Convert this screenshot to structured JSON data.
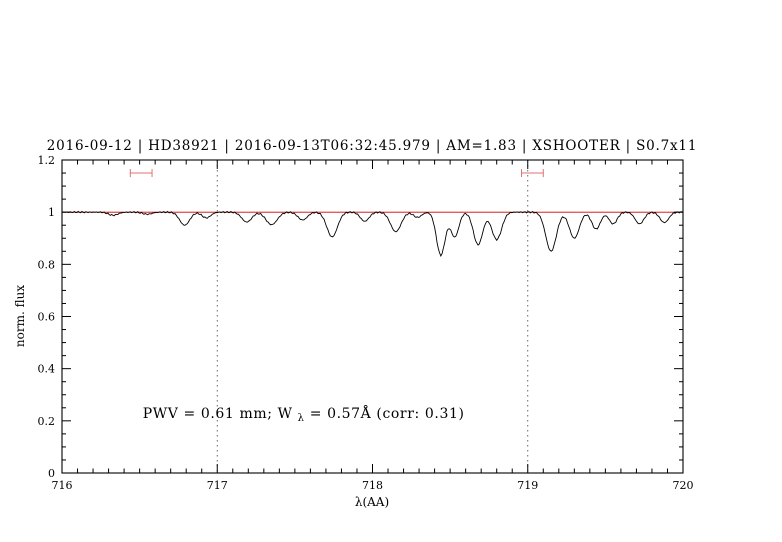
{
  "page": {
    "background_color": "#ffffff"
  },
  "chart_data": {
    "type": "line",
    "title": "2016-09-12 | HD38921 | 2016-09-13T06:32:45.979 | AM=1.83 | XSHOOTER | S0.7x11",
    "title_color": "#0000e0",
    "xlabel": "λ(AA)",
    "ylabel": "norm. flux",
    "xlim": [
      716,
      720
    ],
    "ylim": [
      0,
      1.2
    ],
    "grid": "off",
    "x_ticks": {
      "values": [
        716,
        717,
        718,
        719,
        720
      ],
      "labels": [
        "716",
        "717",
        "718",
        "719",
        "720"
      ],
      "minor_step": 0.1
    },
    "y_ticks": {
      "values": [
        0,
        0.2,
        0.4,
        0.6,
        0.8,
        1,
        1.2
      ],
      "labels": [
        "0",
        "0.2",
        "0.4",
        "0.6",
        "0.8",
        "1",
        "1.2"
      ],
      "minor_step": 0.05
    },
    "dotted_vlines": {
      "x": [
        717,
        719
      ],
      "color": "#555555",
      "style": "dotted"
    },
    "continuum_line": {
      "y": 1.0,
      "color": "#cc0000"
    },
    "band_markers": {
      "color": "#e07070",
      "y": 1.15,
      "items": [
        {
          "x_min": 716.44,
          "x_max": 716.58
        },
        {
          "x_min": 718.96,
          "x_max": 719.1
        }
      ]
    },
    "annotation": {
      "color": "#0000e0",
      "x": 716.52,
      "y": 0.21,
      "parts": {
        "pre": "PWV = 0.61 mm; W",
        "sub": "λ",
        "post": " = 0.57Å (corr: 0.31)"
      }
    },
    "spectrum": {
      "color": "#000000",
      "continuum_level": 1.0,
      "sample_step": 0.008,
      "noise_amplitude": 0.003,
      "absorption_lines_format": [
        "center_AA",
        "depth_norm_flux",
        "sigma_AA"
      ],
      "absorption_lines": [
        [
          716.33,
          0.012,
          0.03
        ],
        [
          716.55,
          0.008,
          0.03
        ],
        [
          716.79,
          0.05,
          0.032
        ],
        [
          716.93,
          0.022,
          0.028
        ],
        [
          717.19,
          0.038,
          0.032
        ],
        [
          717.35,
          0.048,
          0.036
        ],
        [
          717.55,
          0.03,
          0.03
        ],
        [
          717.74,
          0.095,
          0.034
        ],
        [
          717.95,
          0.035,
          0.028
        ],
        [
          718.15,
          0.075,
          0.034
        ],
        [
          718.29,
          0.02,
          0.026
        ],
        [
          718.44,
          0.165,
          0.028
        ],
        [
          718.53,
          0.095,
          0.026
        ],
        [
          718.68,
          0.125,
          0.03
        ],
        [
          718.8,
          0.105,
          0.032
        ],
        [
          719.15,
          0.15,
          0.034
        ],
        [
          719.3,
          0.1,
          0.032
        ],
        [
          719.44,
          0.065,
          0.028
        ],
        [
          719.55,
          0.045,
          0.026
        ],
        [
          719.72,
          0.045,
          0.028
        ],
        [
          719.88,
          0.04,
          0.028
        ]
      ]
    }
  }
}
